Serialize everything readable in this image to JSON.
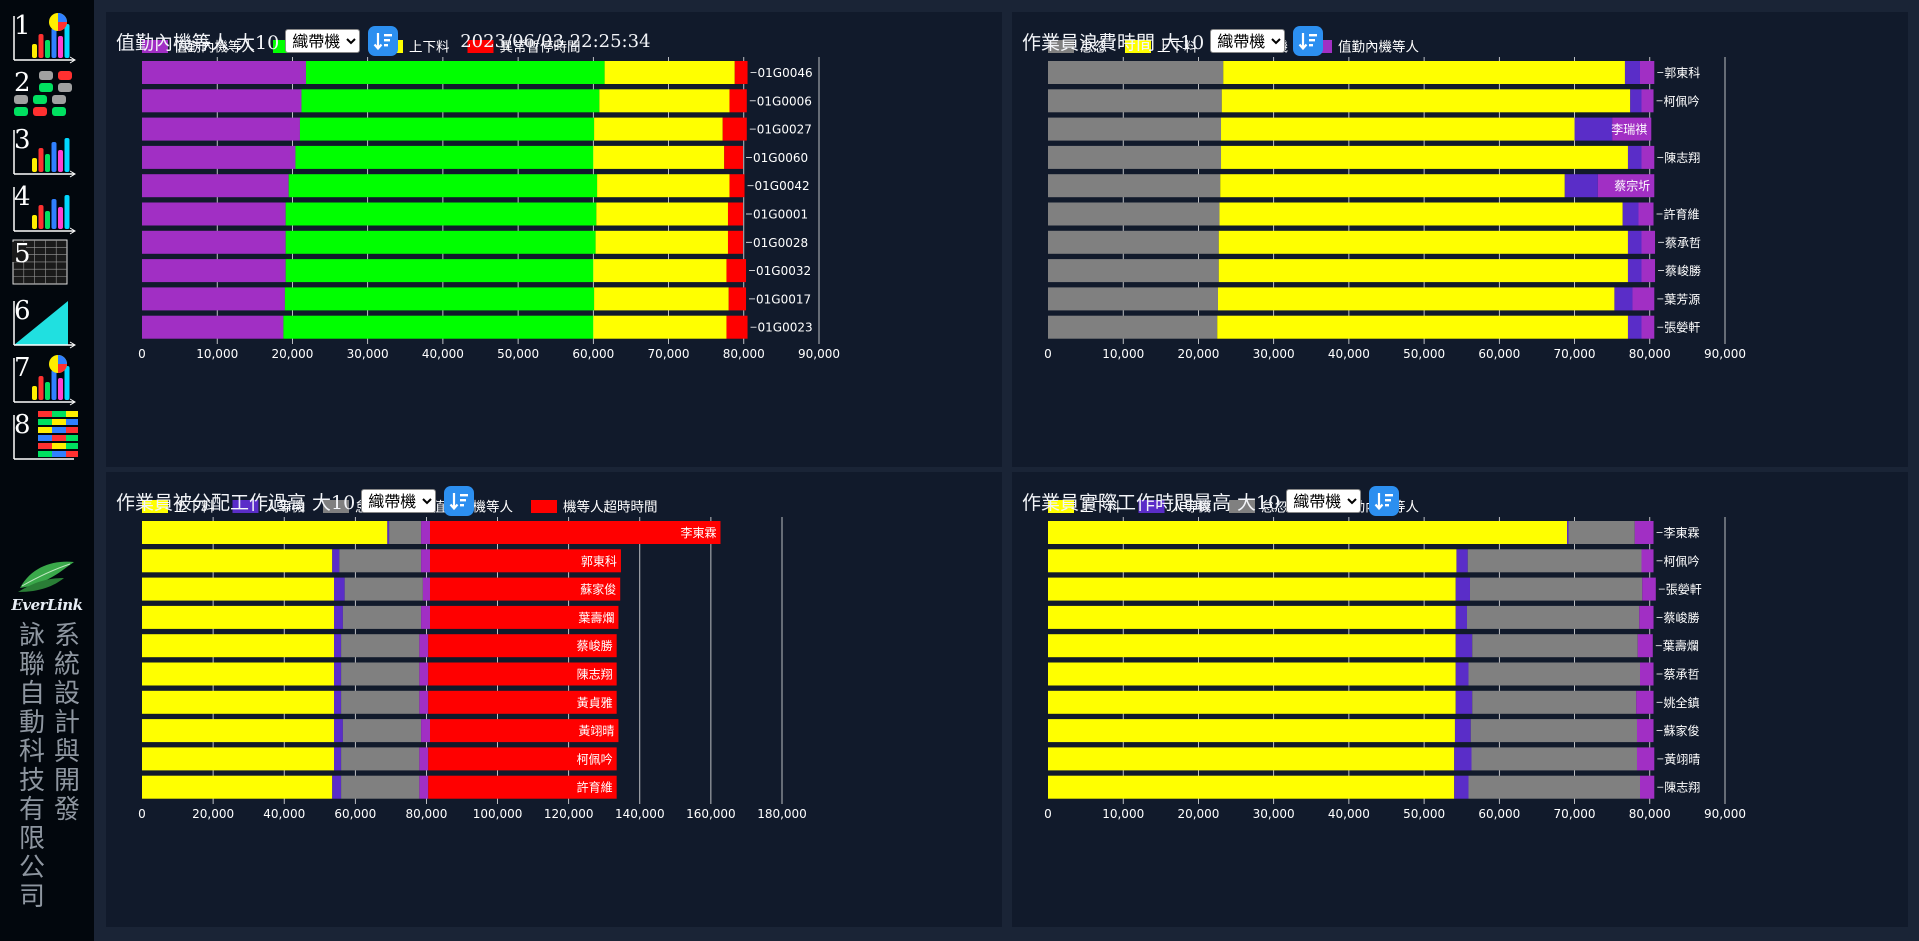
{
  "brand": {
    "name": "EverLink",
    "company": "詠聯自動科技有限公司",
    "slogan": "系統設計與開發"
  },
  "nav": [
    {
      "label": "1",
      "icon": "bar-pie-chart-icon"
    },
    {
      "label": "2",
      "icon": "tile-grid-icon"
    },
    {
      "label": "3",
      "icon": "bar-chart-icon"
    },
    {
      "label": "4",
      "icon": "bar-chart-icon"
    },
    {
      "label": "5",
      "icon": "table-icon"
    },
    {
      "label": "6",
      "icon": "area-chart-icon"
    },
    {
      "label": "7",
      "icon": "bar-pie-chart-icon"
    },
    {
      "label": "8",
      "icon": "stacked-bars-icon"
    }
  ],
  "colors": {
    "purple": "#a12fc4",
    "green": "#00ff00",
    "yellow": "#ffff00",
    "red": "#ff0000",
    "gray": "#808080",
    "indigo": "#5a2dc8"
  },
  "timestamp": "2023/06/03 22:25:34",
  "panels": [
    {
      "title": "值勤內機等人 大10",
      "selector": {
        "selected": "織帶機"
      },
      "sort_icon": "sort-descending-icon",
      "chart_data": {
        "type": "bar",
        "orientation": "horizontal",
        "stacked": true,
        "legend_position": "top",
        "xlim": [
          0,
          90000
        ],
        "xticks": [
          0,
          10000,
          20000,
          30000,
          40000,
          50000,
          60000,
          70000,
          80000,
          90000
        ],
        "grid": true,
        "label_position": "right",
        "categories": [
          "01G0046",
          "01G0006",
          "01G0027",
          "01G0060",
          "01G0042",
          "01G0001",
          "01G0028",
          "01G0032",
          "01G0017",
          "01G0023"
        ],
        "series": [
          {
            "name": "值勤內機等人",
            "color": "#a12fc4",
            "values": [
              21800,
              21200,
              21000,
              20400,
              19500,
              19100,
              19100,
              19100,
              19000,
              18800
            ]
          },
          {
            "name": "加工時間",
            "color": "#00ff00",
            "values": [
              39700,
              39600,
              39100,
              39600,
              41000,
              41300,
              41200,
              40900,
              41100,
              41200
            ]
          },
          {
            "name": "上下料",
            "color": "#ffff00",
            "values": [
              17300,
              17300,
              17100,
              17400,
              17600,
              17500,
              17600,
              17700,
              17900,
              17700
            ]
          },
          {
            "name": "異常暫停時間",
            "color": "#ff0000",
            "values": [
              1700,
              2300,
              3200,
              2500,
              2000,
              2000,
              2000,
              2600,
              2300,
              2800
            ]
          }
        ]
      }
    },
    {
      "title": "作業員浪費時間 大10",
      "selector": {
        "selected": "織帶機"
      },
      "sort_icon": "sort-descending-icon",
      "chart_data": {
        "type": "bar",
        "orientation": "horizontal",
        "stacked": true,
        "legend_position": "top",
        "xlim": [
          0,
          90000
        ],
        "xticks": [
          0,
          10000,
          20000,
          30000,
          40000,
          50000,
          60000,
          70000,
          80000,
          90000
        ],
        "grid": true,
        "label_position": "right",
        "categories": [
          "郭東科",
          "柯佩吟",
          "李瑞祺",
          "陳志翔",
          "蔡宗圻",
          "許育維",
          "蔡承哲",
          "蔡峻勝",
          "葉芳源",
          "張嫈軒"
        ],
        "series": [
          {
            "name": "怠忽",
            "color": "#808080",
            "values": [
              23300,
              23100,
              23000,
              23000,
              22900,
              22800,
              22700,
              22700,
              22600,
              22500
            ]
          },
          {
            "name": "上下料",
            "color": "#ffff00",
            "values": [
              53400,
              54300,
              47000,
              54100,
              45800,
              53600,
              54400,
              54400,
              52700,
              54600
            ]
          },
          {
            "name": "人等機",
            "color": "#5a2dc8",
            "values": [
              2000,
              1500,
              5000,
              1800,
              4400,
              2100,
              1800,
              1800,
              2400,
              1800
            ]
          },
          {
            "name": "值勤內機等人",
            "color": "#a12fc4",
            "values": [
              1900,
              1600,
              5200,
              1700,
              7500,
              2000,
              1800,
              1800,
              2900,
              1700
            ]
          }
        ],
        "inline_labels": [
          "李瑞祺",
          "蔡宗圻"
        ]
      }
    },
    {
      "title": "作業員被分配工作過高 大10",
      "selector": {
        "selected": "織帶機"
      },
      "sort_icon": "sort-descending-icon",
      "chart_data": {
        "type": "bar",
        "orientation": "horizontal",
        "stacked": true,
        "legend_position": "top",
        "xlim": [
          0,
          180000
        ],
        "xticks": [
          0,
          20000,
          40000,
          60000,
          80000,
          100000,
          120000,
          140000,
          160000,
          180000
        ],
        "grid": true,
        "label_position": "inside-end",
        "categories": [
          "李東霖",
          "郭東科",
          "蘇家俊",
          "葉壽爛",
          "蔡峻勝",
          "陳志翔",
          "黃貞雅",
          "黃翊晴",
          "柯佩吟",
          "許育維"
        ],
        "series": [
          {
            "name": "上下料",
            "color": "#ffff00",
            "values": [
              69000,
              53500,
              54000,
              54000,
              54000,
              54000,
              54000,
              54000,
              54000,
              53500
            ]
          },
          {
            "name": "人等機",
            "color": "#5a2dc8",
            "values": [
              500,
              2000,
              3000,
              2500,
              2000,
              2000,
              2000,
              2500,
              2000,
              2500
            ]
          },
          {
            "name": "怠忽",
            "color": "#808080",
            "values": [
              9000,
              23000,
              22000,
              22000,
              22000,
              22000,
              22000,
              22000,
              22000,
              22000
            ]
          },
          {
            "name": "值勤內機等人",
            "color": "#a12fc4",
            "values": [
              2500,
              2500,
              2000,
              2500,
              2500,
              2500,
              2500,
              2500,
              2500,
              2500
            ]
          },
          {
            "name": "機等人超時時間",
            "color": "#ff0000",
            "values": [
              81700,
              53700,
              53500,
              53000,
              53000,
              53000,
              53000,
              53000,
              53000,
              53000
            ]
          }
        ]
      }
    },
    {
      "title": "作業員實際工作時間最高 大10",
      "selector": {
        "selected": "織帶機"
      },
      "sort_icon": "sort-descending-icon",
      "chart_data": {
        "type": "bar",
        "orientation": "horizontal",
        "stacked": true,
        "legend_position": "top",
        "xlim": [
          0,
          90000
        ],
        "xticks": [
          0,
          10000,
          20000,
          30000,
          40000,
          50000,
          60000,
          70000,
          80000,
          90000
        ],
        "grid": true,
        "label_position": "right",
        "categories": [
          "李東霖",
          "柯佩吟",
          "張嫈軒",
          "蔡峻勝",
          "葉壽爛",
          "蔡承哲",
          "姚全鎮",
          "蘇家俊",
          "黃翊晴",
          "陳志翔"
        ],
        "series": [
          {
            "name": "上下料",
            "color": "#ffff00",
            "values": [
              69000,
              54300,
              54200,
              54200,
              54200,
              54200,
              54200,
              54100,
              54000,
              54000
            ]
          },
          {
            "name": "人等機",
            "color": "#5a2dc8",
            "values": [
              200,
              1500,
              1900,
              1500,
              2200,
              1700,
              2200,
              2100,
              2300,
              1900
            ]
          },
          {
            "name": "怠忽",
            "color": "#808080",
            "values": [
              8800,
              23100,
              22900,
              22900,
              22000,
              22800,
              21800,
              22100,
              22000,
              22800
            ]
          },
          {
            "name": "值勤內機等人",
            "color": "#a12fc4",
            "values": [
              2500,
              1600,
              1800,
              1900,
              2000,
              1800,
              2300,
              2200,
              2300,
              1900
            ]
          }
        ]
      }
    }
  ]
}
